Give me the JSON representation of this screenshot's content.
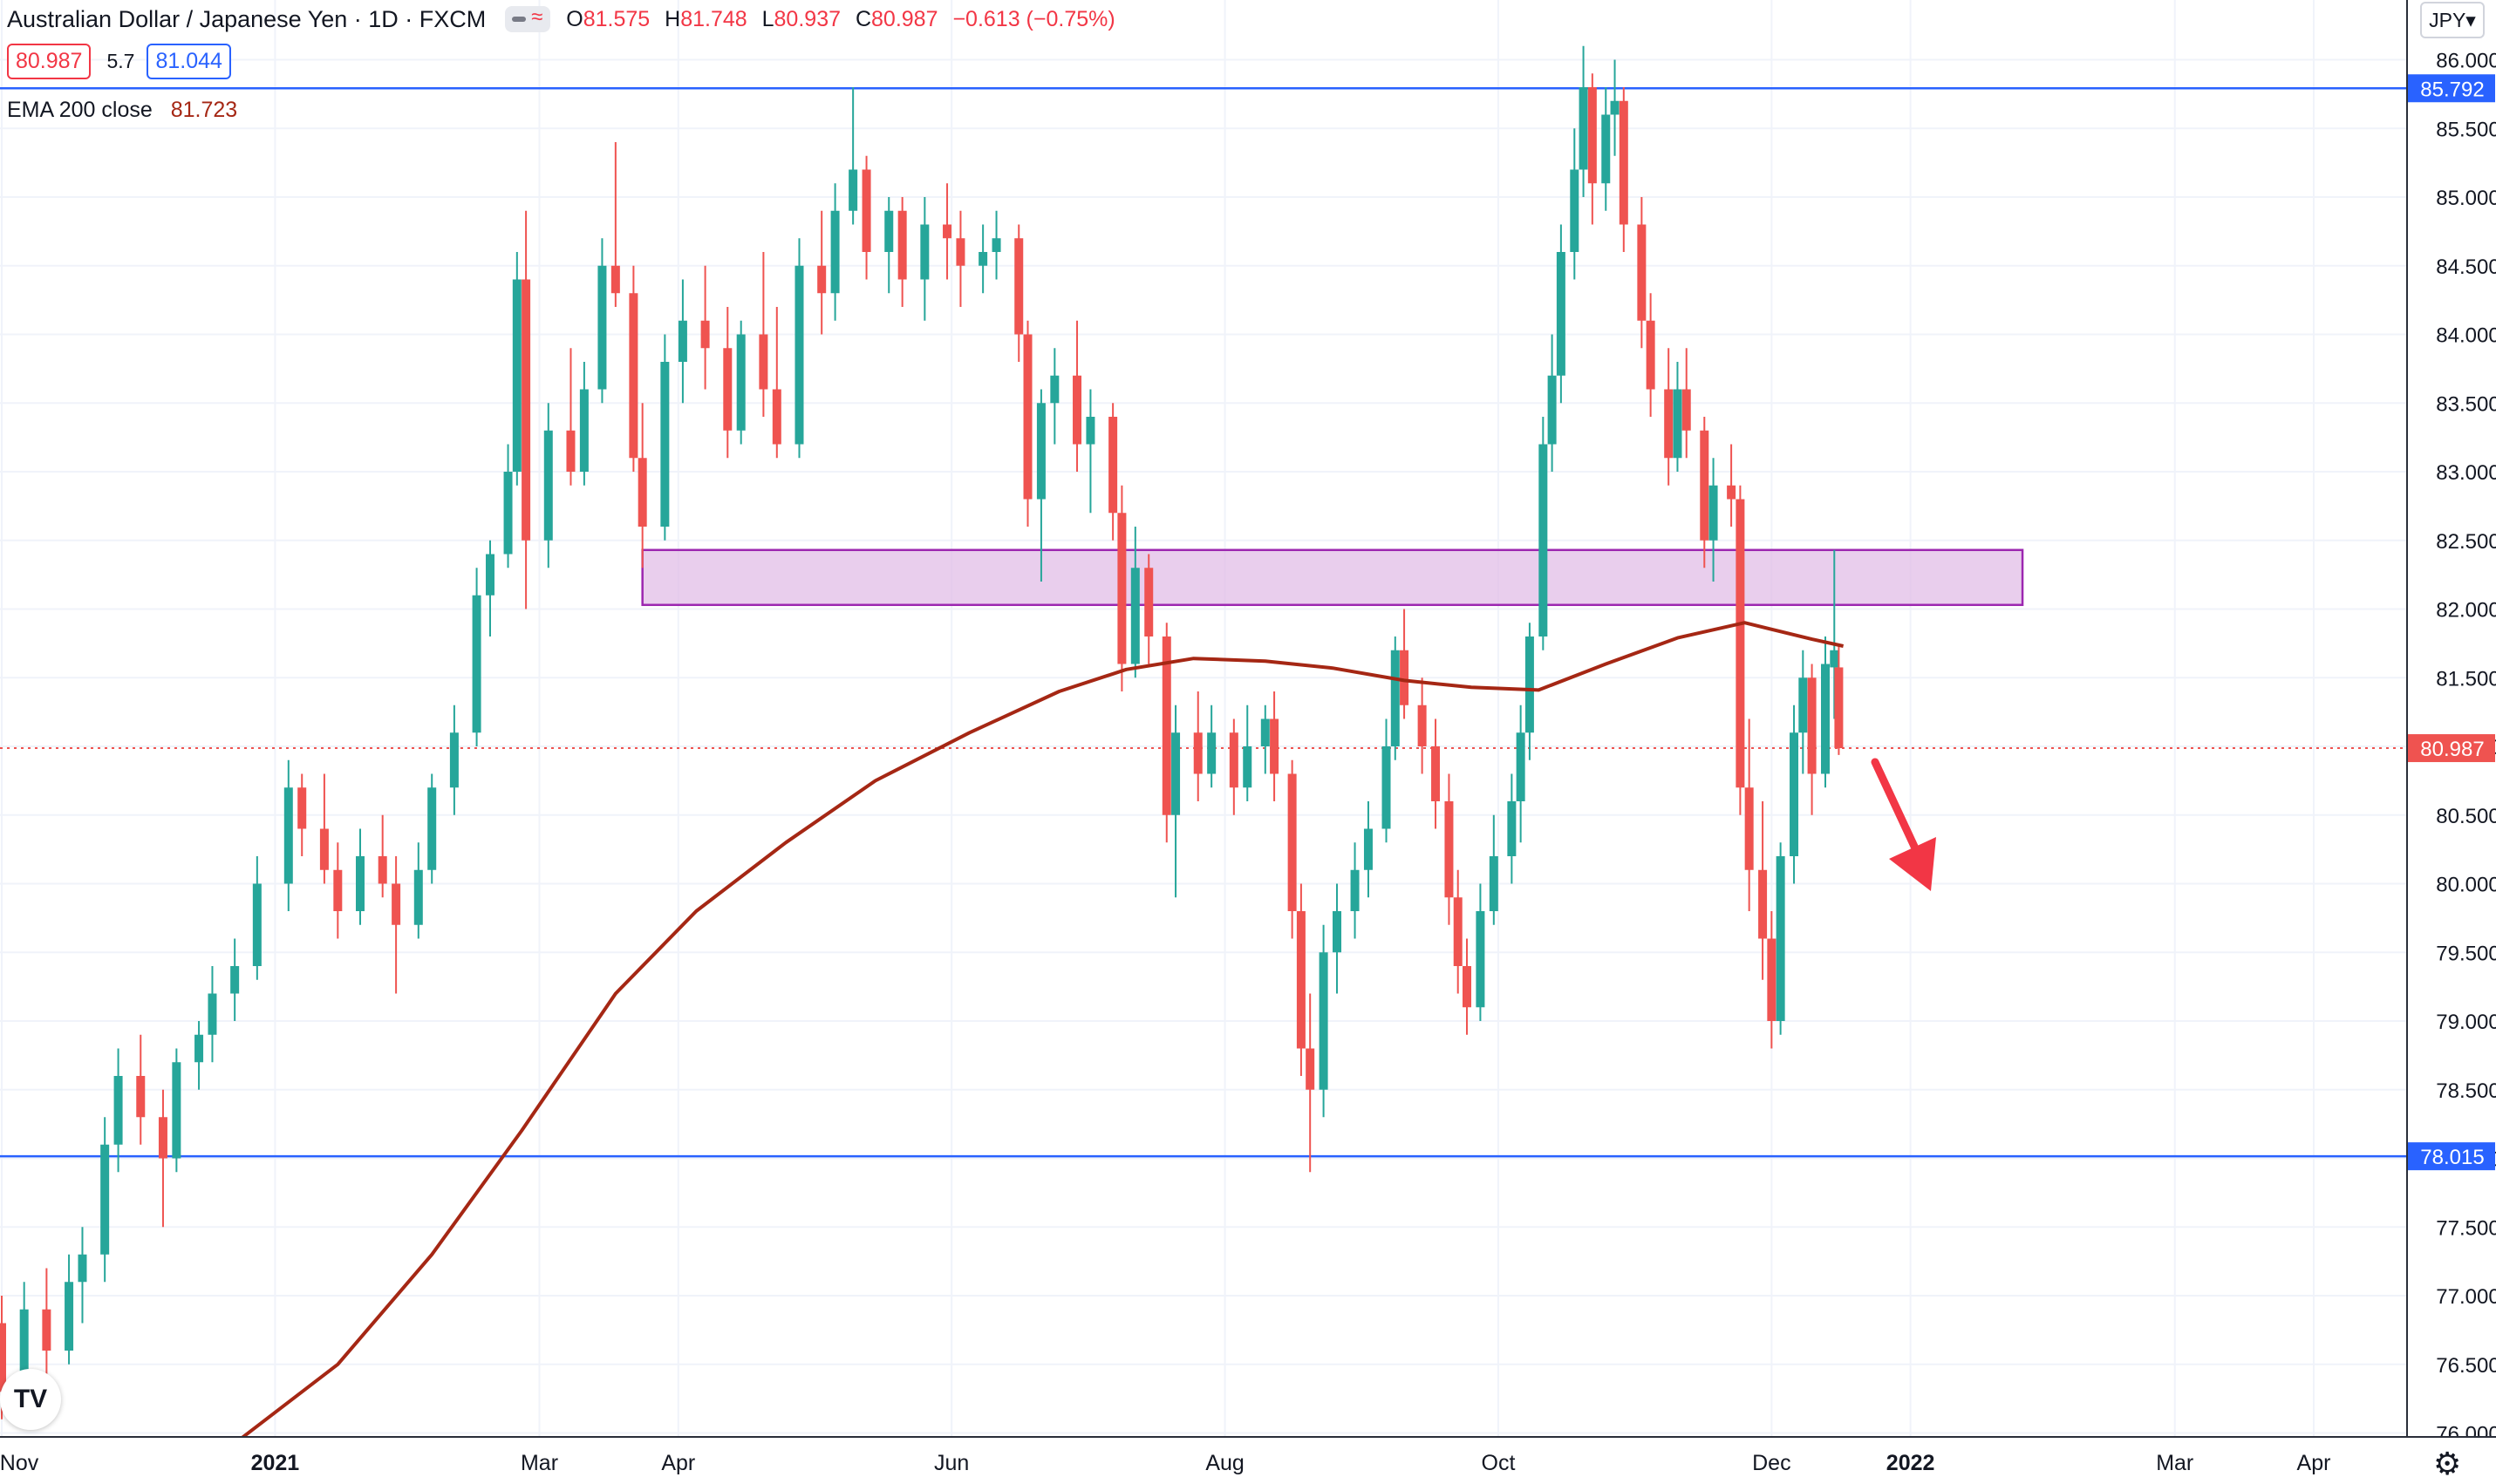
{
  "header": {
    "symbol_title": "Australian Dollar / Japanese Yen · 1D · FXCM",
    "open_label": "O",
    "open": "81.575",
    "high_label": "H",
    "high": "81.748",
    "low_label": "L",
    "low": "80.937",
    "close_label": "C",
    "close": "80.987",
    "change": "−0.613 (−0.75%)",
    "bid": "80.987",
    "spread": "5.7",
    "ask": "81.044",
    "currency_button": "JPY▾"
  },
  "ema_legend": {
    "label": "EMA 200 close",
    "value": "81.723"
  },
  "colors": {
    "up": "#26a69a",
    "down": "#ef5350",
    "ema": "#a52714",
    "hline": "#2962ff",
    "zone_fill": "#e1bee7",
    "zone_border": "#9c27b0",
    "arrow": "#f23645",
    "grid": "#f0f3fa",
    "axis_text": "#131722"
  },
  "icons": [
    "hide-indicators-icon",
    "tradingview-logo-icon",
    "settings-gear-icon",
    "down-arrow-annotation-icon"
  ],
  "chart_data": {
    "type": "candlestick",
    "title": "Australian Dollar / Japanese Yen · 1D · FXCM",
    "x_ticks": [
      "Nov",
      "2021",
      "Mar",
      "Apr",
      "Jun",
      "Aug",
      "Oct",
      "Dec",
      "2022",
      "Mar",
      "Apr"
    ],
    "y_ticks": [
      "86.000",
      "85.500",
      "85.000",
      "84.500",
      "84.000",
      "83.500",
      "83.000",
      "82.500",
      "82.000",
      "81.500",
      "81.000",
      "80.500",
      "80.000",
      "79.500",
      "79.000",
      "78.500",
      "78.000",
      "77.500",
      "77.000",
      "76.500",
      "76.000"
    ],
    "ylim": [
      75.95,
      86.35
    ],
    "horizontal_lines": [
      {
        "value": 85.792,
        "label": "85.792"
      },
      {
        "value": 78.015,
        "label": "78.015"
      }
    ],
    "last_price": {
      "value": 80.987,
      "label": "80.987"
    },
    "resistance_zone": {
      "from": "2021-03-24",
      "to": "2022-01-26",
      "low": 82.03,
      "high": 82.43
    },
    "annotation": "down-arrow",
    "series": [
      {
        "name": "EMA 200 close",
        "points": [
          [
            "2020-12-24",
            75.95
          ],
          [
            "2021-01-15",
            76.5
          ],
          [
            "2021-02-05",
            77.3
          ],
          [
            "2021-02-25",
            78.2
          ],
          [
            "2021-03-18",
            79.2
          ],
          [
            "2021-04-05",
            79.8
          ],
          [
            "2021-04-25",
            80.3
          ],
          [
            "2021-05-15",
            80.75
          ],
          [
            "2021-06-05",
            81.1
          ],
          [
            "2021-06-25",
            81.4
          ],
          [
            "2021-07-10",
            81.56
          ],
          [
            "2021-07-25",
            81.64
          ],
          [
            "2021-08-10",
            81.62
          ],
          [
            "2021-08-25",
            81.57
          ],
          [
            "2021-09-10",
            81.48
          ],
          [
            "2021-09-25",
            81.43
          ],
          [
            "2021-10-10",
            81.41
          ],
          [
            "2021-10-25",
            81.6
          ],
          [
            "2021-11-10",
            81.79
          ],
          [
            "2021-11-25",
            81.9
          ],
          [
            "2021-12-10",
            81.78
          ],
          [
            "2021-12-17",
            81.73
          ]
        ]
      }
    ],
    "candles_description": "daily OHLC, values listed as [date, open, high, low, close]",
    "candles": [
      [
        "2020-11-01",
        76.8,
        77.0,
        76.1,
        76.3
      ],
      [
        "2020-11-06",
        76.3,
        77.1,
        76.2,
        76.9
      ],
      [
        "2020-11-11",
        76.9,
        77.2,
        76.4,
        76.6
      ],
      [
        "2020-11-16",
        76.6,
        77.3,
        76.5,
        77.1
      ],
      [
        "2020-11-19",
        77.1,
        77.5,
        76.8,
        77.3
      ],
      [
        "2020-11-24",
        77.3,
        78.3,
        77.1,
        78.1
      ],
      [
        "2020-11-27",
        78.1,
        78.8,
        77.9,
        78.6
      ],
      [
        "2020-12-02",
        78.6,
        78.9,
        78.1,
        78.3
      ],
      [
        "2020-12-07",
        78.3,
        78.5,
        77.5,
        78.0
      ],
      [
        "2020-12-10",
        78.0,
        78.8,
        77.9,
        78.7
      ],
      [
        "2020-12-15",
        78.7,
        79.0,
        78.5,
        78.9
      ],
      [
        "2020-12-18",
        78.9,
        79.4,
        78.7,
        79.2
      ],
      [
        "2020-12-23",
        79.2,
        79.6,
        79.0,
        79.4
      ],
      [
        "2020-12-28",
        79.4,
        80.2,
        79.3,
        80.0
      ],
      [
        "2021-01-04",
        80.0,
        80.9,
        79.8,
        80.7
      ],
      [
        "2021-01-07",
        80.7,
        80.8,
        80.2,
        80.4
      ],
      [
        "2021-01-12",
        80.4,
        80.8,
        80.0,
        80.1
      ],
      [
        "2021-01-15",
        80.1,
        80.3,
        79.6,
        79.8
      ],
      [
        "2021-01-20",
        79.8,
        80.4,
        79.7,
        80.2
      ],
      [
        "2021-01-25",
        80.2,
        80.5,
        79.9,
        80.0
      ],
      [
        "2021-01-28",
        80.0,
        80.2,
        79.2,
        79.7
      ],
      [
        "2021-02-02",
        79.7,
        80.3,
        79.6,
        80.1
      ],
      [
        "2021-02-05",
        80.1,
        80.8,
        80.0,
        80.7
      ],
      [
        "2021-02-10",
        80.7,
        81.3,
        80.5,
        81.1
      ],
      [
        "2021-02-15",
        81.1,
        82.3,
        81.0,
        82.1
      ],
      [
        "2021-02-18",
        82.1,
        82.5,
        81.8,
        82.4
      ],
      [
        "2021-02-22",
        82.4,
        83.2,
        82.3,
        83.0
      ],
      [
        "2021-02-24",
        83.0,
        84.6,
        82.9,
        84.4
      ],
      [
        "2021-02-26",
        84.4,
        84.9,
        82.0,
        82.5
      ],
      [
        "2021-03-03",
        82.5,
        83.5,
        82.3,
        83.3
      ],
      [
        "2021-03-08",
        83.3,
        83.9,
        82.9,
        83.0
      ],
      [
        "2021-03-11",
        83.0,
        83.8,
        82.9,
        83.6
      ],
      [
        "2021-03-15",
        83.6,
        84.7,
        83.5,
        84.5
      ],
      [
        "2021-03-18",
        84.5,
        85.4,
        84.2,
        84.3
      ],
      [
        "2021-03-22",
        84.3,
        84.5,
        83.0,
        83.1
      ],
      [
        "2021-03-24",
        83.1,
        83.5,
        82.3,
        82.6
      ],
      [
        "2021-03-29",
        82.6,
        84.0,
        82.5,
        83.8
      ],
      [
        "2021-04-02",
        83.8,
        84.4,
        83.5,
        84.1
      ],
      [
        "2021-04-07",
        84.1,
        84.5,
        83.6,
        83.9
      ],
      [
        "2021-04-12",
        83.9,
        84.2,
        83.1,
        83.3
      ],
      [
        "2021-04-15",
        83.3,
        84.1,
        83.2,
        84.0
      ],
      [
        "2021-04-20",
        84.0,
        84.6,
        83.4,
        83.6
      ],
      [
        "2021-04-23",
        83.6,
        84.2,
        83.1,
        83.2
      ],
      [
        "2021-04-28",
        83.2,
        84.7,
        83.1,
        84.5
      ],
      [
        "2021-05-03",
        84.5,
        84.9,
        84.0,
        84.3
      ],
      [
        "2021-05-06",
        84.3,
        85.1,
        84.1,
        84.9
      ],
      [
        "2021-05-10",
        84.9,
        85.8,
        84.8,
        85.2
      ],
      [
        "2021-05-13",
        85.2,
        85.3,
        84.4,
        84.6
      ],
      [
        "2021-05-18",
        84.6,
        85.0,
        84.3,
        84.9
      ],
      [
        "2021-05-21",
        84.9,
        85.0,
        84.2,
        84.4
      ],
      [
        "2021-05-26",
        84.4,
        85.0,
        84.1,
        84.8
      ],
      [
        "2021-05-31",
        84.8,
        85.1,
        84.4,
        84.7
      ],
      [
        "2021-06-03",
        84.7,
        84.9,
        84.2,
        84.5
      ],
      [
        "2021-06-08",
        84.5,
        84.8,
        84.3,
        84.6
      ],
      [
        "2021-06-11",
        84.6,
        84.9,
        84.4,
        84.7
      ],
      [
        "2021-06-16",
        84.7,
        84.8,
        83.8,
        84.0
      ],
      [
        "2021-06-18",
        84.0,
        84.1,
        82.6,
        82.8
      ],
      [
        "2021-06-21",
        82.8,
        83.6,
        82.2,
        83.5
      ],
      [
        "2021-06-24",
        83.5,
        83.9,
        83.2,
        83.7
      ],
      [
        "2021-06-29",
        83.7,
        84.1,
        83.0,
        83.2
      ],
      [
        "2021-07-02",
        83.2,
        83.6,
        82.7,
        83.4
      ],
      [
        "2021-07-07",
        83.4,
        83.5,
        82.5,
        82.7
      ],
      [
        "2021-07-09",
        82.7,
        82.9,
        81.4,
        81.6
      ],
      [
        "2021-07-12",
        81.6,
        82.6,
        81.5,
        82.3
      ],
      [
        "2021-07-15",
        82.3,
        82.4,
        81.6,
        81.8
      ],
      [
        "2021-07-19",
        81.8,
        81.9,
        80.3,
        80.5
      ],
      [
        "2021-07-21",
        80.5,
        81.3,
        79.9,
        81.1
      ],
      [
        "2021-07-26",
        81.1,
        81.4,
        80.6,
        80.8
      ],
      [
        "2021-07-29",
        80.8,
        81.3,
        80.7,
        81.1
      ],
      [
        "2021-08-03",
        81.1,
        81.2,
        80.5,
        80.7
      ],
      [
        "2021-08-06",
        80.7,
        81.3,
        80.6,
        81.0
      ],
      [
        "2021-08-10",
        81.0,
        81.3,
        80.8,
        81.2
      ],
      [
        "2021-08-12",
        81.2,
        81.4,
        80.6,
        80.8
      ],
      [
        "2021-08-16",
        80.8,
        80.9,
        79.6,
        79.8
      ],
      [
        "2021-08-18",
        79.8,
        80.0,
        78.6,
        78.8
      ],
      [
        "2021-08-20",
        78.8,
        79.2,
        77.9,
        78.5
      ],
      [
        "2021-08-23",
        78.5,
        79.7,
        78.3,
        79.5
      ],
      [
        "2021-08-26",
        79.5,
        80.0,
        79.2,
        79.8
      ],
      [
        "2021-08-30",
        79.8,
        80.3,
        79.6,
        80.1
      ],
      [
        "2021-09-02",
        80.1,
        80.6,
        79.9,
        80.4
      ],
      [
        "2021-09-06",
        80.4,
        81.2,
        80.3,
        81.0
      ],
      [
        "2021-09-08",
        81.0,
        81.8,
        80.9,
        81.7
      ],
      [
        "2021-09-10",
        81.7,
        82.0,
        81.2,
        81.3
      ],
      [
        "2021-09-14",
        81.3,
        81.5,
        80.8,
        81.0
      ],
      [
        "2021-09-17",
        81.0,
        81.2,
        80.4,
        80.6
      ],
      [
        "2021-09-20",
        80.6,
        80.8,
        79.7,
        79.9
      ],
      [
        "2021-09-22",
        79.9,
        80.1,
        79.2,
        79.4
      ],
      [
        "2021-09-24",
        79.4,
        79.6,
        78.9,
        79.1
      ],
      [
        "2021-09-27",
        79.1,
        80.0,
        79.0,
        79.8
      ],
      [
        "2021-09-30",
        79.8,
        80.5,
        79.7,
        80.2
      ],
      [
        "2021-10-04",
        80.2,
        80.8,
        80.0,
        80.6
      ],
      [
        "2021-10-06",
        80.6,
        81.3,
        80.3,
        81.1
      ],
      [
        "2021-10-08",
        81.1,
        81.9,
        80.9,
        81.8
      ],
      [
        "2021-10-11",
        81.8,
        83.4,
        81.7,
        83.2
      ],
      [
        "2021-10-13",
        83.2,
        84.0,
        83.0,
        83.7
      ],
      [
        "2021-10-15",
        83.7,
        84.8,
        83.5,
        84.6
      ],
      [
        "2021-10-18",
        84.6,
        85.5,
        84.4,
        85.2
      ],
      [
        "2021-10-20",
        85.2,
        86.1,
        85.0,
        85.8
      ],
      [
        "2021-10-22",
        85.8,
        85.9,
        84.8,
        85.1
      ],
      [
        "2021-10-25",
        85.1,
        85.8,
        84.9,
        85.6
      ],
      [
        "2021-10-27",
        85.6,
        86.0,
        85.3,
        85.7
      ],
      [
        "2021-10-29",
        85.7,
        85.8,
        84.6,
        84.8
      ],
      [
        "2021-11-02",
        84.8,
        85.0,
        83.9,
        84.1
      ],
      [
        "2021-11-04",
        84.1,
        84.3,
        83.4,
        83.6
      ],
      [
        "2021-11-08",
        83.6,
        83.9,
        82.9,
        83.1
      ],
      [
        "2021-11-10",
        83.1,
        83.8,
        83.0,
        83.6
      ],
      [
        "2021-11-12",
        83.6,
        83.9,
        83.1,
        83.3
      ],
      [
        "2021-11-16",
        83.3,
        83.4,
        82.3,
        82.5
      ],
      [
        "2021-11-18",
        82.5,
        83.1,
        82.2,
        82.9
      ],
      [
        "2021-11-22",
        82.9,
        83.2,
        82.6,
        82.8
      ],
      [
        "2021-11-24",
        82.8,
        82.9,
        80.5,
        80.7
      ],
      [
        "2021-11-26",
        80.7,
        81.2,
        79.8,
        80.1
      ],
      [
        "2021-11-29",
        80.1,
        80.6,
        79.3,
        79.6
      ],
      [
        "2021-12-01",
        79.6,
        79.8,
        78.8,
        79.0
      ],
      [
        "2021-12-03",
        79.0,
        80.3,
        78.9,
        80.2
      ],
      [
        "2021-12-06",
        80.2,
        81.3,
        80.0,
        81.1
      ],
      [
        "2021-12-08",
        81.1,
        81.7,
        80.8,
        81.5
      ],
      [
        "2021-12-10",
        81.5,
        81.6,
        80.5,
        80.8
      ],
      [
        "2021-12-13",
        80.8,
        81.8,
        80.7,
        81.6
      ],
      [
        "2021-12-15",
        81.575,
        82.43,
        81.2,
        81.7
      ],
      [
        "2021-12-16",
        81.575,
        81.748,
        80.937,
        80.987
      ]
    ]
  }
}
